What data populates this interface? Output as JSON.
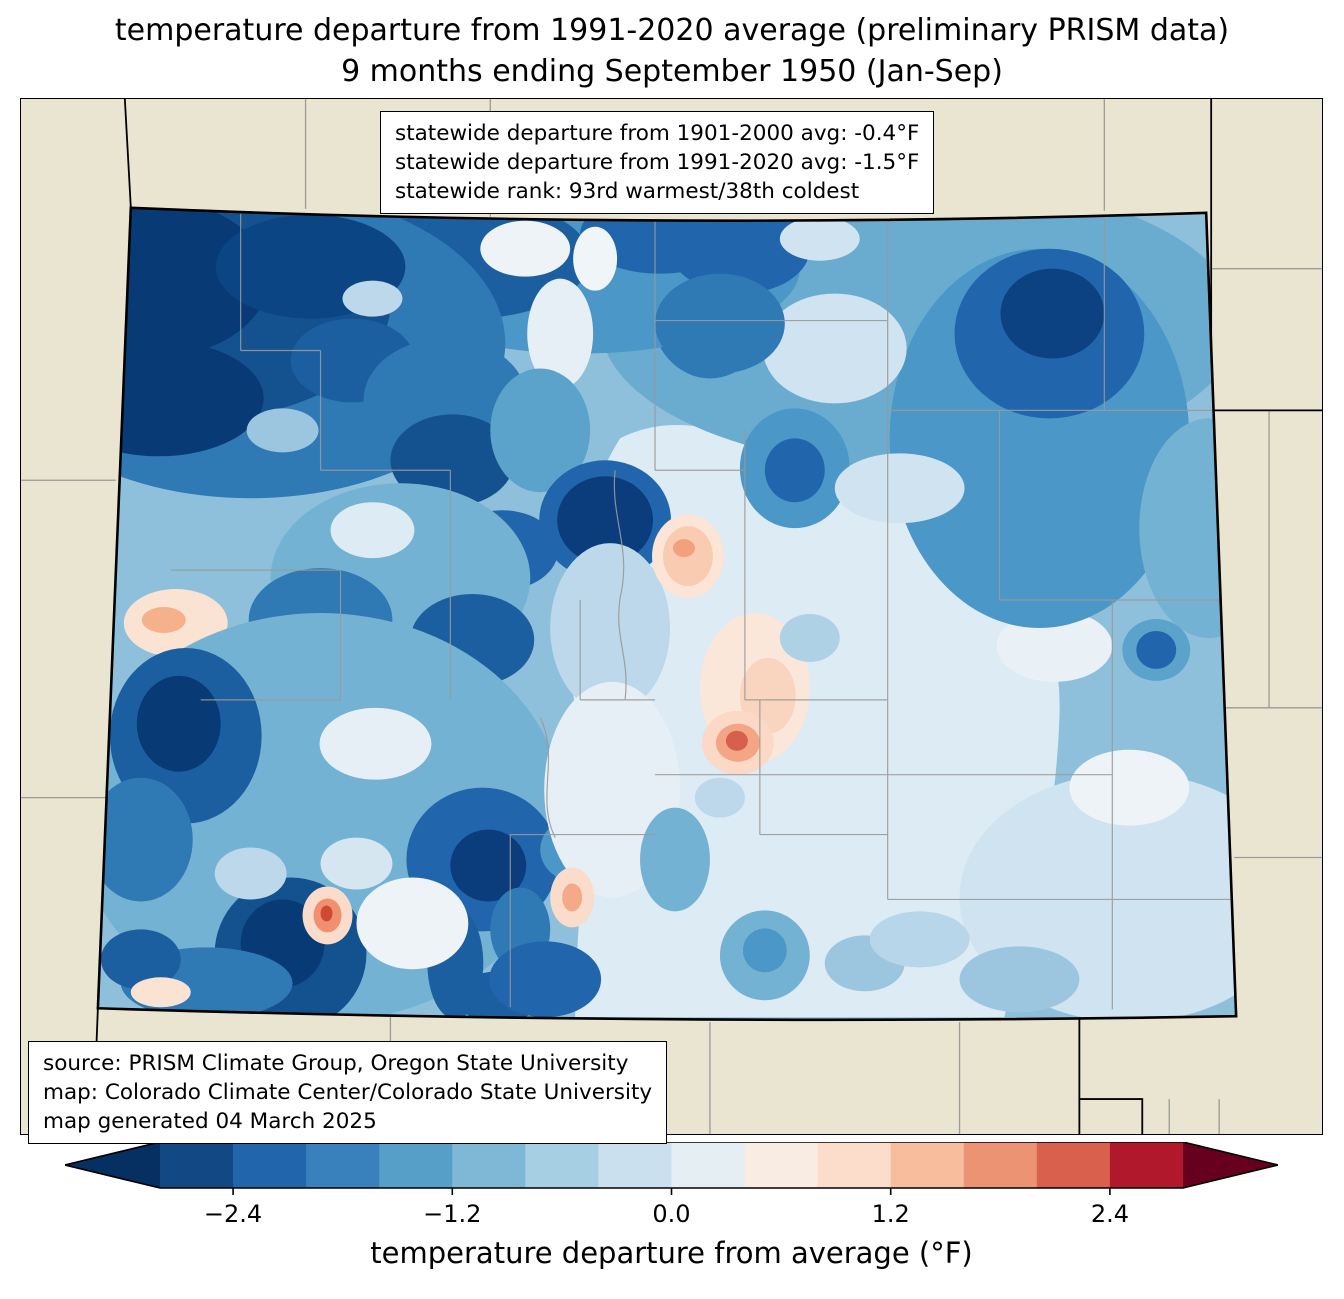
{
  "title": {
    "line1": "temperature departure from 1991-2020 average (preliminary PRISM data)",
    "line2": "9 months ending September 1950 (Jan-Sep)"
  },
  "stats_box": {
    "line1": "statewide departure from 1901-2000 avg: -0.4°F",
    "line2": "statewide departure from 1991-2020 avg: -1.5°F",
    "line3": "statewide rank: 93rd warmest/38th coldest"
  },
  "source_box": {
    "line1": "source: PRISM Climate Group, Oregon State University",
    "line2": "map: Colorado Climate Center/Colorado State University",
    "line3": "map generated 04 March 2025"
  },
  "colorbar": {
    "label": "temperature departure from average (°F)",
    "ticks": [
      "−2.4",
      "−1.2",
      "0.0",
      "1.2",
      "2.4"
    ],
    "tick_values": [
      -2.4,
      -1.2,
      0.0,
      1.2,
      2.4
    ],
    "range": [
      -2.8,
      2.8
    ],
    "segment_colors": [
      "#124984",
      "#2166ac",
      "#3981bc",
      "#569fc9",
      "#7fb8d7",
      "#a7cfe4",
      "#cbe0ee",
      "#e5eef3",
      "#f9ece2",
      "#fcdccb",
      "#f7bd9d",
      "#ec9374",
      "#d8604c",
      "#b2182b"
    ],
    "arrow_left_color": "#053061",
    "arrow_right_color": "#67001f"
  },
  "map": {
    "region": "Colorado",
    "background_color": "#e9e5d0",
    "state_border_color": "#000000",
    "county_line_color": "#999999",
    "palette": {
      "darkest_blue": "#083b76",
      "dark_blue": "#2166ac",
      "medium_blue": "#4b97c7",
      "light_blue": "#9cc5df",
      "pale_blue": "#dcebf4",
      "near_white": "#f0f5f8",
      "pale_peach": "#fbe3d3",
      "peach": "#f4a989",
      "red": "#d6604d"
    }
  }
}
